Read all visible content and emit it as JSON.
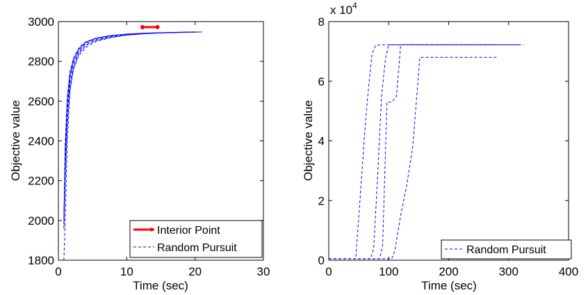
{
  "chart_data": [
    {
      "type": "line",
      "xlabel": "Time (sec)",
      "ylabel": "Objective value",
      "xlim": [
        0,
        30
      ],
      "ylim": [
        1800,
        3000
      ],
      "xticks": [
        "0",
        "10",
        "20",
        "30"
      ],
      "yticks": [
        "1800",
        "2000",
        "2200",
        "2400",
        "2600",
        "2800",
        "3000"
      ],
      "grid": false,
      "legend_position": "bottom-right",
      "series": [
        {
          "name": "Interior Point",
          "color": "#ff0000",
          "style": "solid-marker",
          "runs": [
            {
              "x": [
                12.3,
                14.5
              ],
              "y": [
                2972,
                2972
              ]
            }
          ]
        },
        {
          "name": "Random Pursuit",
          "color": "#0000ff",
          "style": "dashed",
          "runs": [
            {
              "x": [
                0.8,
                1.0,
                1.3,
                1.7,
                2.2,
                3.0,
                4.0,
                5.5,
                7.5,
                10,
                13,
                16,
                21
              ],
              "y": [
                1800,
                2000,
                2400,
                2650,
                2760,
                2840,
                2880,
                2905,
                2920,
                2932,
                2940,
                2944,
                2948
              ]
            },
            {
              "x": [
                0.8,
                1.0,
                1.3,
                1.7,
                2.2,
                3.0,
                4.0,
                5.5,
                7.5,
                10,
                13,
                16,
                20
              ],
              "y": [
                1960,
                2300,
                2560,
                2720,
                2800,
                2860,
                2895,
                2915,
                2928,
                2937,
                2942,
                2945,
                2948
              ]
            },
            {
              "x": [
                0.8,
                1.0,
                1.3,
                1.7,
                2.2,
                3.0,
                4.0,
                5.5,
                7.5,
                10,
                13,
                16,
                21
              ],
              "y": [
                1960,
                2200,
                2480,
                2660,
                2760,
                2830,
                2870,
                2900,
                2918,
                2932,
                2940,
                2944,
                2948
              ]
            },
            {
              "x": [
                0.8,
                1.0,
                1.3,
                1.7,
                2.2,
                3.0,
                4.0,
                5.5,
                7.5,
                10,
                13,
                16,
                20
              ],
              "y": [
                2000,
                2350,
                2600,
                2740,
                2810,
                2865,
                2897,
                2916,
                2929,
                2937,
                2942,
                2945,
                2948
              ]
            },
            {
              "x": [
                0.8,
                1.0,
                1.3,
                1.7,
                2.2,
                3.0,
                4.0,
                5.5,
                7.5,
                10,
                13,
                16,
                21
              ],
              "y": [
                1980,
                2250,
                2520,
                2690,
                2780,
                2845,
                2882,
                2906,
                2921,
                2933,
                2940,
                2944,
                2948
              ]
            },
            {
              "x": [
                0.8,
                1.0,
                1.3,
                1.7,
                2.2,
                3.0,
                4.0,
                5.5,
                7.5,
                10,
                13,
                16,
                20
              ],
              "y": [
                2010,
                2380,
                2620,
                2750,
                2815,
                2868,
                2898,
                2917,
                2929,
                2937,
                2942,
                2945,
                2948
              ]
            },
            {
              "x": [
                0.8,
                1.0,
                1.3,
                1.7,
                2.2,
                3.0,
                4.0,
                5.5,
                7.5,
                10,
                13,
                16,
                21
              ],
              "y": [
                1990,
                2320,
                2580,
                2720,
                2795,
                2855,
                2890,
                2911,
                2925,
                2935,
                2941,
                2944,
                2948
              ]
            }
          ]
        }
      ]
    },
    {
      "type": "line",
      "xlabel": "Time (sec)",
      "ylabel": "Objective value",
      "y_multiplier": "x 10",
      "y_multiplier_exponent": "4",
      "xlim": [
        0,
        400
      ],
      "ylim": [
        0,
        8
      ],
      "xticks": [
        "0",
        "100",
        "200",
        "300",
        "400"
      ],
      "yticks": [
        "0",
        "2",
        "4",
        "6",
        "8"
      ],
      "grid": false,
      "legend_position": "bottom-right",
      "series": [
        {
          "name": "Random Pursuit",
          "color": "#0000ff",
          "style": "dashed",
          "runs": [
            {
              "x": [
                0,
                45,
                52,
                60,
                65,
                72,
                78,
                90,
                140,
                200,
                280
              ],
              "y": [
                0.05,
                0.05,
                2.0,
                4.3,
                5.5,
                6.9,
                7.2,
                7.22,
                7.22,
                7.22,
                7.22
              ]
            },
            {
              "x": [
                0,
                70,
                75,
                82,
                88,
                95,
                100,
                150,
                230,
                320
              ],
              "y": [
                0.05,
                0.05,
                0.4,
                3.0,
                5.5,
                6.8,
                7.22,
                7.22,
                7.22,
                7.22
              ]
            },
            {
              "x": [
                0,
                85,
                90,
                97,
                105,
                113,
                120,
                170,
                250,
                325
              ],
              "y": [
                0.05,
                0.05,
                0.5,
                5.3,
                5.3,
                5.5,
                7.22,
                7.22,
                7.22,
                7.22
              ]
            },
            {
              "x": [
                0,
                105,
                110,
                120,
                130,
                140,
                152,
                200,
                250,
                280
              ],
              "y": [
                0.05,
                0.05,
                0.3,
                1.5,
                2.5,
                3.8,
                6.8,
                6.8,
                6.8,
                6.8
              ]
            }
          ]
        }
      ]
    }
  ]
}
